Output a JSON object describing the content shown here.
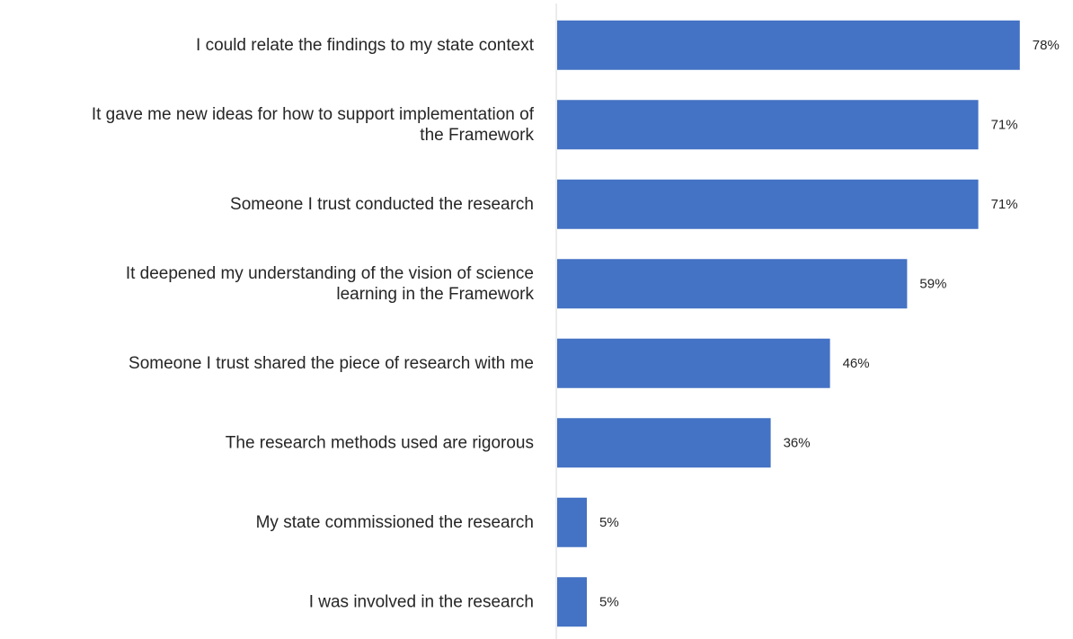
{
  "chart_data": {
    "type": "bar",
    "orientation": "horizontal",
    "title": "",
    "xlabel": "",
    "ylabel": "",
    "categories": [
      [
        "I could relate the findings to my state context"
      ],
      [
        "It gave me new ideas for how to support implementation of",
        "the Framework"
      ],
      [
        "Someone I trust conducted the research"
      ],
      [
        "It deepened my understanding of the vision of science",
        "learning in the Framework"
      ],
      [
        "Someone I trust shared the piece of research with me"
      ],
      [
        "The research methods used are rigorous"
      ],
      [
        "My state commissioned the research"
      ],
      [
        "I was involved in the research"
      ]
    ],
    "values": [
      78,
      71,
      71,
      59,
      46,
      36,
      5,
      5
    ],
    "value_labels": [
      "78%",
      "71%",
      "71%",
      "59%",
      "46%",
      "36%",
      "5%",
      "5%"
    ],
    "xlim": [
      0,
      100
    ],
    "grid": false,
    "legend": "none",
    "bar_color": "#4472C4",
    "axis_color": "#D9D9D9",
    "text_color": "#262626"
  }
}
